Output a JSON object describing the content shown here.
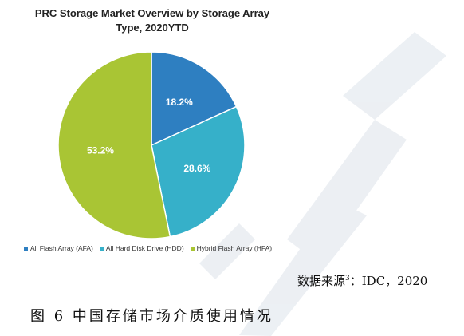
{
  "chart_data": {
    "type": "pie",
    "title_line1": "PRC Storage Market Overview by Storage Array",
    "title_line2": "Type, 2020YTD",
    "categories": [
      "All Flash Array (AFA)",
      "All Hard Disk Drive (HDD)",
      "Hybrid Flash Array (HFA)"
    ],
    "values": [
      18.2,
      28.6,
      53.2
    ],
    "labels": [
      "18.2%",
      "28.6%",
      "53.2%"
    ],
    "colors": [
      "#2e7fc1",
      "#36b0c9",
      "#a9c534"
    ],
    "legend_position": "bottom"
  },
  "source": {
    "prefix": "数据来源",
    "superscript": "3",
    "suffix": "：IDC，2020"
  },
  "caption": "图 6 中国存储市场介质使用情况"
}
